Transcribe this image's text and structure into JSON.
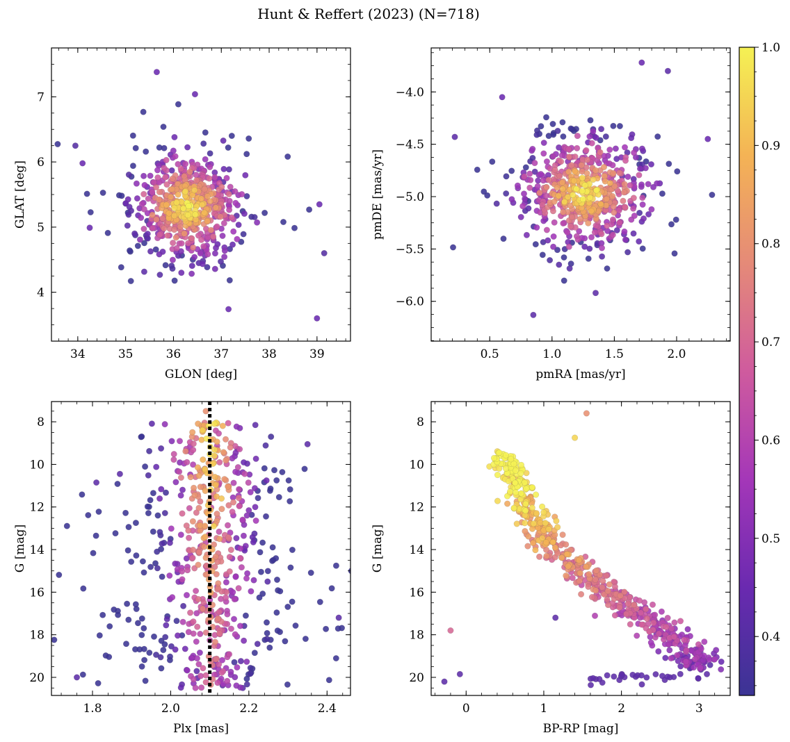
{
  "title": "Hunt & Reffert (2023) (N=718)",
  "colorbar": {
    "range": [
      0.34,
      1.0
    ],
    "ticks": [
      0.4,
      0.5,
      0.6,
      0.7,
      0.8,
      0.9,
      1.0
    ],
    "tick_labels": [
      "0.4",
      "0.5",
      "0.6",
      "0.7",
      "0.8",
      "0.9",
      "1.0"
    ],
    "colormap": "plasma",
    "stops": [
      "#3b3494",
      "#6a2ab0",
      "#a437b8",
      "#cf5b9e",
      "#e58a78",
      "#f4b355",
      "#f5f154"
    ]
  },
  "chart_data": [
    {
      "type": "scatter",
      "id": "sky",
      "xlabel": "GLON [deg]",
      "ylabel": "GLAT [deg]",
      "xlim": [
        33.45,
        39.7
      ],
      "ylim": [
        3.25,
        7.75
      ],
      "xticks": [
        34,
        35,
        36,
        37,
        38,
        39
      ],
      "xtick_labels": [
        "34",
        "35",
        "36",
        "37",
        "38",
        "39"
      ],
      "yticks": [
        4,
        5,
        6,
        7
      ],
      "ytick_labels": [
        "4",
        "5",
        "6",
        "7"
      ],
      "invert_y": false,
      "center": [
        36.3,
        5.32
      ],
      "spread": [
        0.75,
        0.55
      ],
      "points_sample": [
        {
          "x": 33.95,
          "y": 6.25,
          "c": 0.4
        },
        {
          "x": 34.1,
          "y": 5.98,
          "c": 0.45
        },
        {
          "x": 34.25,
          "y": 4.99,
          "c": 0.45
        },
        {
          "x": 35.65,
          "y": 7.38,
          "c": 0.45
        },
        {
          "x": 36.45,
          "y": 7.04,
          "c": 0.45
        },
        {
          "x": 39.0,
          "y": 3.6,
          "c": 0.45
        },
        {
          "x": 39.15,
          "y": 4.6,
          "c": 0.4
        },
        {
          "x": 39.05,
          "y": 5.35,
          "c": 0.45
        },
        {
          "x": 37.15,
          "y": 3.74,
          "c": 0.45
        },
        {
          "x": 36.3,
          "y": 5.35,
          "c": 0.98
        },
        {
          "x": 36.1,
          "y": 5.3,
          "c": 0.95
        },
        {
          "x": 36.5,
          "y": 5.2,
          "c": 0.92
        }
      ]
    },
    {
      "type": "scatter",
      "id": "pm",
      "xlabel": "pmRA [mas/yr]",
      "ylabel": "pmDE [mas/yr]",
      "xlim": [
        0.03,
        2.43
      ],
      "ylim": [
        -6.38,
        -3.58
      ],
      "xticks": [
        0.5,
        1.0,
        1.5,
        2.0
      ],
      "xtick_labels": [
        "0.5",
        "1.0",
        "1.5",
        "2.0"
      ],
      "yticks": [
        -6.0,
        -5.5,
        -5.0,
        -4.5,
        -4.0
      ],
      "ytick_labels": [
        "−6.0",
        "−5.5",
        "−5.0",
        "−4.5",
        "−4.0"
      ],
      "invert_y": false,
      "center": [
        1.27,
        -4.95
      ],
      "spread": [
        0.34,
        0.34
      ],
      "points_sample": [
        {
          "x": 0.22,
          "y": -4.43,
          "c": 0.42
        },
        {
          "x": 0.6,
          "y": -4.05,
          "c": 0.45
        },
        {
          "x": 0.85,
          "y": -6.13,
          "c": 0.42
        },
        {
          "x": 1.72,
          "y": -3.72,
          "c": 0.45
        },
        {
          "x": 1.93,
          "y": -3.8,
          "c": 0.42
        },
        {
          "x": 2.25,
          "y": -4.45,
          "c": 0.45
        },
        {
          "x": 1.35,
          "y": -5.92,
          "c": 0.42
        },
        {
          "x": 1.3,
          "y": -4.88,
          "c": 0.97
        },
        {
          "x": 1.1,
          "y": -5.05,
          "c": 0.95
        }
      ]
    },
    {
      "type": "scatter",
      "id": "plx",
      "xlabel": "Plx [mas]",
      "ylabel": "G [mag]",
      "xlim": [
        1.695,
        2.46
      ],
      "ylim": [
        20.85,
        7.05
      ],
      "xticks": [
        1.8,
        2.0,
        2.2,
        2.4
      ],
      "xtick_labels": [
        "1.8",
        "2.0",
        "2.2",
        "2.4"
      ],
      "yticks": [
        8,
        10,
        12,
        14,
        16,
        18,
        20
      ],
      "ytick_labels": [
        "8",
        "10",
        "12",
        "14",
        "16",
        "18",
        "20"
      ],
      "invert_y": true,
      "reference_line_x": 2.1,
      "points_sample": [
        {
          "x": 1.76,
          "y": 20.0,
          "c": 0.42
        },
        {
          "x": 1.81,
          "y": 10.85,
          "c": 0.42
        },
        {
          "x": 1.87,
          "y": 10.45,
          "c": 0.42
        },
        {
          "x": 2.35,
          "y": 9.05,
          "c": 0.42
        },
        {
          "x": 2.43,
          "y": 17.2,
          "c": 0.42
        },
        {
          "x": 2.09,
          "y": 7.5,
          "c": 0.8
        },
        {
          "x": 2.11,
          "y": 12.9,
          "c": 0.95
        },
        {
          "x": 2.13,
          "y": 11.6,
          "c": 0.92
        }
      ]
    },
    {
      "type": "scatter",
      "id": "cmd",
      "xlabel": "BP-RP [mag]",
      "ylabel": "G [mag]",
      "xlim": [
        -0.45,
        3.4
      ],
      "ylim": [
        20.85,
        7.05
      ],
      "xticks": [
        0,
        1,
        2,
        3
      ],
      "xtick_labels": [
        "0",
        "1",
        "2",
        "3"
      ],
      "yticks": [
        8,
        10,
        12,
        14,
        16,
        18,
        20
      ],
      "ytick_labels": [
        "8",
        "10",
        "12",
        "14",
        "16",
        "18",
        "20"
      ],
      "invert_y": true,
      "sequence": [
        [
          0.48,
          9.5
        ],
        [
          0.55,
          10.2
        ],
        [
          0.65,
          11.0
        ],
        [
          0.78,
          12.0
        ],
        [
          0.9,
          12.8
        ],
        [
          1.05,
          13.6
        ],
        [
          1.25,
          14.4
        ],
        [
          1.45,
          15.0
        ],
        [
          1.7,
          15.6
        ],
        [
          1.95,
          16.3
        ],
        [
          2.2,
          17.0
        ],
        [
          2.45,
          17.6
        ],
        [
          2.7,
          18.3
        ],
        [
          2.9,
          19.0
        ],
        [
          3.05,
          19.6
        ]
      ],
      "points_sample": [
        {
          "x": 0.3,
          "y": 10.1,
          "c": 0.97
        },
        {
          "x": -0.2,
          "y": 17.8,
          "c": 0.7
        },
        {
          "x": -0.28,
          "y": 20.2,
          "c": 0.42
        },
        {
          "x": -0.08,
          "y": 19.85,
          "c": 0.42
        },
        {
          "x": 1.55,
          "y": 7.6,
          "c": 0.8
        },
        {
          "x": 1.4,
          "y": 8.75,
          "c": 0.95
        },
        {
          "x": 1.15,
          "y": 17.2,
          "c": 0.42
        },
        {
          "x": 3.1,
          "y": 19.85,
          "c": 0.42
        }
      ]
    }
  ]
}
